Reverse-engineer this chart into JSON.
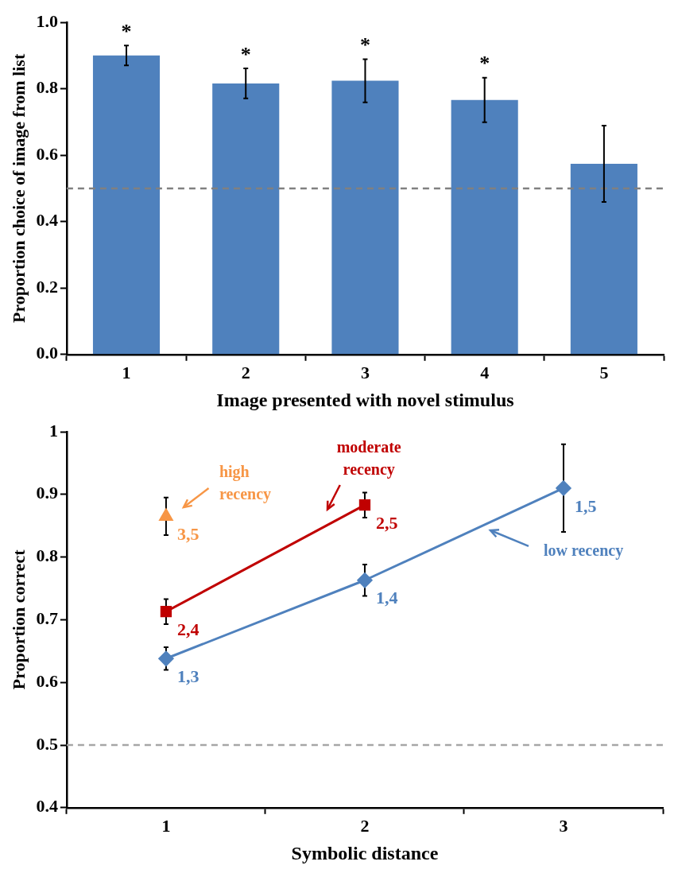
{
  "chart_data": [
    {
      "type": "bar",
      "xlabel": "Image presented with novel stimulus",
      "ylabel": "Proportion choice of image from list",
      "categories": [
        "1",
        "2",
        "3",
        "4",
        "5"
      ],
      "values": [
        0.9,
        0.816,
        0.824,
        0.766,
        0.574
      ],
      "errors": [
        0.03,
        0.045,
        0.065,
        0.067,
        0.115
      ],
      "color": "#4f81bd",
      "ylim": [
        0,
        1
      ],
      "yticks": [
        {
          "value": 0,
          "label": "0.0"
        },
        {
          "value": 0.2,
          "label": "0.2"
        },
        {
          "value": 0.4,
          "label": "0.4"
        },
        {
          "value": 0.6,
          "label": "0.6"
        },
        {
          "value": 0.8,
          "label": "0.8"
        },
        {
          "value": 1,
          "label": "1.0"
        }
      ],
      "ref_lines": [
        {
          "axis": "y",
          "value": 0.5,
          "color": "#808080",
          "line_style": "dashed"
        }
      ],
      "annotations": [
        "*",
        "*",
        "*",
        "*"
      ],
      "grid": false,
      "legend": false
    },
    {
      "type": "line",
      "xlabel": "Symbolic distance",
      "ylabel": "Proportion correct",
      "x": [
        1,
        2,
        3
      ],
      "xlim": [
        0.5,
        3.5
      ],
      "xticks": [
        {
          "value": 0.5,
          "label": null
        },
        1,
        {
          "value": 1.5,
          "label": null
        },
        2,
        {
          "value": 2.5,
          "label": null
        },
        3,
        {
          "value": 3.5,
          "label": null
        }
      ],
      "series": [
        {
          "name": "low recency",
          "color": "#4f81bd",
          "marker": "diamond",
          "values": [
            0.638,
            0.763,
            0.91
          ],
          "errors": [
            0.018,
            0.025,
            0.07
          ]
        },
        {
          "name": "moderate recency",
          "color": "#c00000",
          "marker": "square",
          "values": [
            0.713,
            0.883,
            null
          ],
          "errors": [
            0.02,
            0.02,
            null
          ]
        },
        {
          "name": "high recency",
          "color": "#f79646",
          "marker": "triangle",
          "values": [
            0.865,
            null,
            null
          ],
          "errors": [
            0.03,
            null,
            null
          ]
        }
      ],
      "annotations": [
        {
          "text": "1,3",
          "x": 1,
          "y": 0.638
        },
        {
          "text": "1,4",
          "x": 2,
          "y": 0.763
        },
        {
          "text": "1,5",
          "x": 3,
          "y": 0.91
        },
        {
          "text": "2,4",
          "x": 1,
          "y": 0.713
        },
        {
          "text": "2,5",
          "x": 2,
          "y": 0.883
        },
        {
          "text": "3,5",
          "x": 1,
          "y": 0.865
        }
      ],
      "ylim": [
        0.4,
        1
      ],
      "yticks": [
        0.4,
        0.5,
        0.6,
        0.7,
        0.8,
        0.9,
        1
      ],
      "ref_lines": [
        {
          "axis": "y",
          "value": 0.5,
          "color": "#a6a6a6",
          "line_style": "dashed"
        }
      ],
      "grid": false,
      "legend": false
    }
  ]
}
